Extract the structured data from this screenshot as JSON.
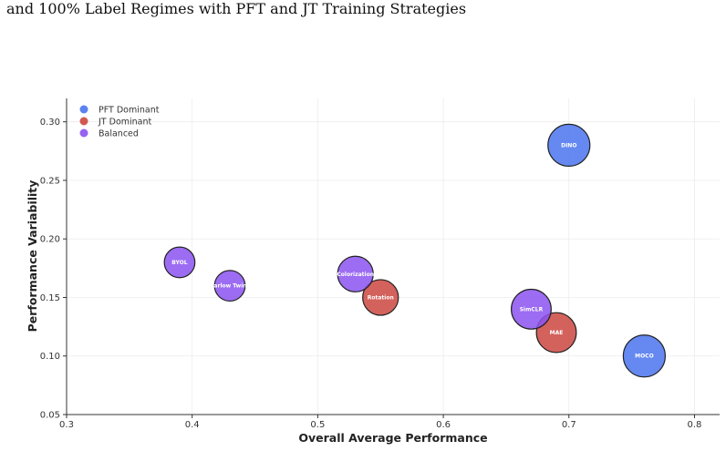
{
  "title": {
    "line": "and 100% Label Regimes with PFT and JT Training Strategies"
  },
  "colors": {
    "pft": "#4a74ee",
    "jt": "#cc473f",
    "balanced": "#8b52f0"
  },
  "chart_data": {
    "type": "scatter",
    "xlabel": "Overall Average Performance",
    "ylabel": "Performance Variability",
    "xlim": [
      0.3,
      0.82
    ],
    "ylim": [
      0.05,
      0.32
    ],
    "xticks": [
      "0.3",
      "0.4",
      "0.5",
      "0.6",
      "0.7",
      "0.8"
    ],
    "yticks": [
      "0.05",
      "0.10",
      "0.15",
      "0.20",
      "0.25",
      "0.30"
    ],
    "grid": true,
    "legend_position": "top-left",
    "series": [
      {
        "name": "PFT Dominant",
        "color_key": "pft",
        "points": [
          {
            "label": "DINO",
            "x": 0.7,
            "y": 0.28,
            "size": 1.0
          },
          {
            "label": "MOCO",
            "x": 0.76,
            "y": 0.1,
            "size": 1.0
          }
        ]
      },
      {
        "name": "JT Dominant",
        "color_key": "jt",
        "points": [
          {
            "label": "Rotation",
            "x": 0.55,
            "y": 0.15,
            "size": 0.85
          },
          {
            "label": "MAE",
            "x": 0.69,
            "y": 0.12,
            "size": 0.95
          }
        ]
      },
      {
        "name": "Balanced",
        "color_key": "balanced",
        "points": [
          {
            "label": "BYOL",
            "x": 0.39,
            "y": 0.18,
            "size": 0.73
          },
          {
            "label": "Barlow Twins",
            "x": 0.43,
            "y": 0.16,
            "size": 0.73
          },
          {
            "label": "Colorization",
            "x": 0.53,
            "y": 0.17,
            "size": 0.85
          },
          {
            "label": "SimCLR",
            "x": 0.67,
            "y": 0.14,
            "size": 0.95
          }
        ]
      }
    ]
  }
}
